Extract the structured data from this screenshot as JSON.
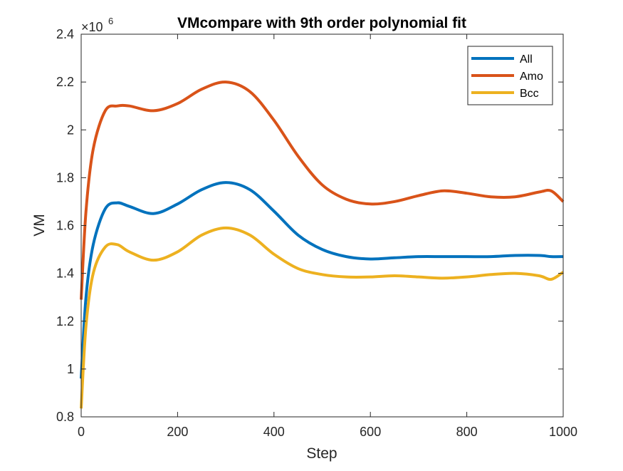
{
  "chart_data": {
    "type": "line",
    "title": "VMcompare with 9th order polynomial fit",
    "xlabel": "Step",
    "ylabel": "VM",
    "xlim": [
      0,
      1000
    ],
    "ylim": [
      0.8,
      2.4
    ],
    "y_exponent_label": "×10",
    "y_exponent_power": "6",
    "x_ticks": [
      0,
      200,
      400,
      600,
      800,
      1000
    ],
    "x_tick_labels": [
      "0",
      "200",
      "400",
      "600",
      "800",
      "1000"
    ],
    "y_ticks": [
      0.8,
      1.0,
      1.2,
      1.4,
      1.6,
      1.8,
      2.0,
      2.2,
      2.4
    ],
    "y_tick_labels": [
      "0.8",
      "1",
      "1.2",
      "1.4",
      "1.6",
      "1.8",
      "2",
      "2.2",
      "2.4"
    ],
    "grid": false,
    "legend_position": "top-right",
    "x": [
      0,
      10,
      25,
      50,
      75,
      100,
      150,
      200,
      250,
      300,
      350,
      400,
      450,
      500,
      550,
      600,
      650,
      700,
      750,
      800,
      850,
      900,
      950,
      975,
      1000
    ],
    "series": [
      {
        "name": "All",
        "color": "#0072BD",
        "values": [
          0.96,
          1.3,
          1.52,
          1.67,
          1.695,
          1.68,
          1.65,
          1.69,
          1.75,
          1.78,
          1.75,
          1.66,
          1.56,
          1.5,
          1.47,
          1.46,
          1.465,
          1.47,
          1.47,
          1.47,
          1.47,
          1.475,
          1.475,
          1.47,
          1.47
        ]
      },
      {
        "name": "Amo",
        "color": "#D95319",
        "values": [
          1.29,
          1.66,
          1.92,
          2.08,
          2.1,
          2.1,
          2.08,
          2.11,
          2.17,
          2.2,
          2.16,
          2.04,
          1.89,
          1.77,
          1.71,
          1.69,
          1.7,
          1.725,
          1.745,
          1.735,
          1.72,
          1.72,
          1.74,
          1.745,
          1.7
        ]
      },
      {
        "name": "Bcc",
        "color": "#EDB120",
        "values": [
          0.835,
          1.18,
          1.4,
          1.51,
          1.52,
          1.49,
          1.455,
          1.49,
          1.56,
          1.59,
          1.56,
          1.48,
          1.42,
          1.395,
          1.385,
          1.385,
          1.39,
          1.385,
          1.38,
          1.385,
          1.395,
          1.4,
          1.39,
          1.375,
          1.405
        ]
      }
    ]
  }
}
